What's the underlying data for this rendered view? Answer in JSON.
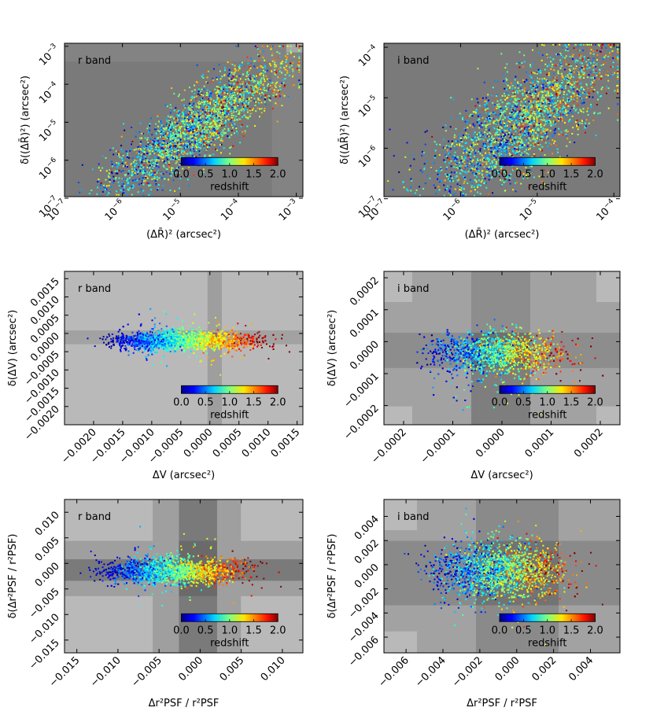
{
  "figure": {
    "description_free": true
  },
  "colorbar": {
    "label": "redshift",
    "ticks": [
      "0.0",
      "0.5",
      "1.0",
      "1.5",
      "2.0"
    ],
    "range": [
      0,
      2
    ]
  },
  "chart_data": [
    {
      "id": "p1",
      "type": "scatter",
      "band_label": "r band",
      "xscale": "log",
      "yscale": "log",
      "xlim": [
        1e-07,
        0.0013
      ],
      "ylim": [
        1.1e-07,
        0.0012
      ],
      "xticks": [
        "10^-7",
        "10^-6",
        "10^-5",
        "10^-4",
        "10^-3"
      ],
      "yticks": [
        "10^-7",
        "10^-6",
        "10^-5",
        "10^-4",
        "10^-3"
      ],
      "xlabel": "(ΔR̄)² (arcsec²)",
      "ylabel": "δ((ΔR̄)²) (arcsec²)",
      "n_points": 2600,
      "trend": "positive correlation; high-redshift galaxies cluster near x≈5e-4 to 1e-3"
    },
    {
      "id": "p2",
      "type": "scatter",
      "band_label": "i band",
      "xscale": "log",
      "yscale": "log",
      "xlim": [
        1e-07,
        0.00012
      ],
      "ylim": [
        1.1e-07,
        0.00012
      ],
      "xticks": [
        "10^-7",
        "10^-6",
        "10^-5",
        "10^-4"
      ],
      "yticks": [
        "10^-7",
        "10^-6",
        "10^-5",
        "10^-4"
      ],
      "xlabel": "(ΔR̄)² (arcsec²)",
      "ylabel": "δ((ΔR̄)²) (arcsec²)",
      "n_points": 2600,
      "trend": "positive correlation; points concentrated at x≈1e-5 to 1e-4"
    },
    {
      "id": "p3",
      "type": "scatter",
      "band_label": "r band",
      "xscale": "linear",
      "yscale": "linear",
      "xlim": [
        -0.0025,
        0.0016
      ],
      "ylim": [
        -0.0025,
        0.0017
      ],
      "xticks": [
        -0.002,
        -0.0015,
        -0.001,
        -0.0005,
        0.0,
        0.0005,
        0.001,
        0.0015
      ],
      "xtick_labels": [
        "−0.0020",
        "−0.0015",
        "−0.0010",
        "−0.0005",
        "0.0000",
        "0.0005",
        "0.0010",
        "0.0015"
      ],
      "yticks": [
        -0.002,
        -0.0015,
        -0.001,
        -0.0005,
        0.0,
        0.0005,
        0.001,
        0.0015
      ],
      "ytick_labels": [
        "−0.0020",
        "−0.0015",
        "−0.0010",
        "−0.0005",
        "0.0000",
        "0.0005",
        "0.0010",
        "0.0015"
      ],
      "xlabel": "ΔV (arcsec²)",
      "ylabel": "δ(ΔV) (arcsec²)",
      "n_points": 2600,
      "trend": "redshift increases with ΔV; low-z at ΔV≈−0.0015, high-z at ΔV≈+0.0010"
    },
    {
      "id": "p4",
      "type": "scatter",
      "band_label": "i band",
      "xscale": "linear",
      "yscale": "linear",
      "xlim": [
        -0.00024,
        0.00024
      ],
      "ylim": [
        -0.00026,
        0.00022
      ],
      "xticks": [
        -0.0002,
        -0.0001,
        0.0,
        0.0001,
        0.0002
      ],
      "xtick_labels": [
        "−0.0002",
        "−0.0001",
        "0.0000",
        "0.0001",
        "0.0002"
      ],
      "yticks": [
        -0.0002,
        -0.0001,
        0.0,
        0.0001,
        0.0002
      ],
      "ytick_labels": [
        "−0.0002",
        "−0.0001",
        "0.0000",
        "0.0001",
        "0.0002"
      ],
      "xlabel": "ΔV (arcsec²)",
      "ylabel": "δ(ΔV) (arcsec²)",
      "n_points": 2600,
      "trend": "cloud centered near 0; high-z points at ΔV≈+0.0001"
    },
    {
      "id": "p5",
      "type": "scatter",
      "band_label": "r band",
      "xscale": "linear",
      "yscale": "linear",
      "xlim": [
        -0.0165,
        0.0125
      ],
      "ylim": [
        -0.0175,
        0.0125
      ],
      "xticks": [
        -0.015,
        -0.01,
        -0.005,
        0.0,
        0.005,
        0.01
      ],
      "xtick_labels": [
        "−0.015",
        "−0.010",
        "−0.005",
        "0.000",
        "0.005",
        "0.010"
      ],
      "yticks": [
        -0.015,
        -0.01,
        -0.005,
        0.0,
        0.005,
        0.01
      ],
      "ytick_labels": [
        "−0.015",
        "−0.010",
        "−0.005",
        "0.000",
        "0.005",
        "0.010"
      ],
      "xlabel": "Δr²PSF / r²PSF",
      "ylabel": "δ(Δr²PSF / r²PSF)",
      "n_points": 2600,
      "trend": "redshift increases with Δr²/r²; high-z at ≈+0.007"
    },
    {
      "id": "p6",
      "type": "scatter",
      "band_label": "i band",
      "xscale": "linear",
      "yscale": "linear",
      "xlim": [
        -0.0072,
        0.0056
      ],
      "ylim": [
        -0.0073,
        0.0054
      ],
      "xticks": [
        -0.006,
        -0.004,
        -0.002,
        0.0,
        0.002,
        0.004
      ],
      "xtick_labels": [
        "−0.006",
        "−0.004",
        "−0.002",
        "0.000",
        "0.002",
        "0.004"
      ],
      "yticks": [
        -0.006,
        -0.004,
        -0.002,
        0.0,
        0.002,
        0.004
      ],
      "ytick_labels": [
        "−0.006",
        "−0.004",
        "−0.002",
        "0.000",
        "0.002",
        "0.004"
      ],
      "xlabel": "Δr²PSF / r²PSF",
      "ylabel": "δ(Δr²PSF / r²PSF)",
      "n_points": 2600,
      "trend": "cloud spanning −0.005 to +0.004; high-z toward positive values"
    }
  ]
}
